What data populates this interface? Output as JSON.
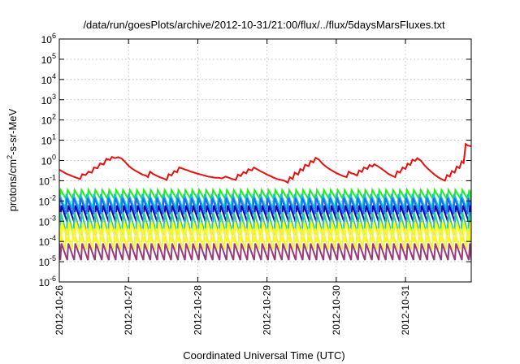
{
  "chart_data": {
    "type": "line",
    "title": "/data/run/goesPlots/archive/2012-10-31/21:00/flux/../flux/5daysMarsFluxes.txt",
    "xlabel": "Coordinated Universal Time (UTC)",
    "ylabel": {
      "prefix": "protons/cm",
      "sup": "2",
      "suffix": "-s-sr-MeV"
    },
    "yscale": "log",
    "ylim": [
      1e-06,
      1000000.0
    ],
    "xlim": [
      0,
      5.95
    ],
    "grid": true,
    "x_ticks": [
      {
        "value": 0,
        "label": "2012-10-26"
      },
      {
        "value": 1,
        "label": "2012-10-27"
      },
      {
        "value": 2,
        "label": "2012-10-28"
      },
      {
        "value": 3,
        "label": "2012-10-29"
      },
      {
        "value": 4,
        "label": "2012-10-30"
      },
      {
        "value": 5,
        "label": "2012-10-31"
      }
    ],
    "y_ticks": [
      {
        "exp": 6,
        "base": "10",
        "sup": "6"
      },
      {
        "exp": 5,
        "base": "10",
        "sup": "5"
      },
      {
        "exp": 4,
        "base": "10",
        "sup": "4"
      },
      {
        "exp": 3,
        "base": "10",
        "sup": "3"
      },
      {
        "exp": 2,
        "base": "10",
        "sup": "2"
      },
      {
        "exp": 1,
        "base": "10",
        "sup": "1"
      },
      {
        "exp": 0,
        "base": "10",
        "sup": "0"
      },
      {
        "exp": -1,
        "base": "10",
        "sup": "-1"
      },
      {
        "exp": -2,
        "base": "10",
        "sup": "-2"
      },
      {
        "exp": -3,
        "base": "10",
        "sup": "-3"
      },
      {
        "exp": -4,
        "base": "10",
        "sup": "-4"
      },
      {
        "exp": -5,
        "base": "10",
        "sup": "-5"
      },
      {
        "exp": -6,
        "base": "10",
        "sup": "-6"
      }
    ],
    "series": [
      {
        "color": "#e81010",
        "width": 2,
        "points": [
          [
            0,
            0.35
          ],
          [
            0.05,
            0.28
          ],
          [
            0.1,
            0.22
          ],
          [
            0.15,
            0.19
          ],
          [
            0.2,
            0.16
          ],
          [
            0.25,
            0.14
          ],
          [
            0.3,
            0.12
          ],
          [
            0.33,
            0.21
          ],
          [
            0.38,
            0.19
          ],
          [
            0.42,
            0.28
          ],
          [
            0.47,
            0.25
          ],
          [
            0.5,
            0.45
          ],
          [
            0.55,
            0.41
          ],
          [
            0.59,
            0.72
          ],
          [
            0.64,
            0.63
          ],
          [
            0.68,
            1.2
          ],
          [
            0.73,
            1.05
          ],
          [
            0.76,
            1.5
          ],
          [
            0.8,
            1.3
          ],
          [
            0.85,
            1.45
          ],
          [
            0.9,
            1.25
          ],
          [
            0.95,
            0.85
          ],
          [
            1.0,
            0.55
          ],
          [
            1.05,
            0.4
          ],
          [
            1.1,
            0.31
          ],
          [
            1.15,
            0.25
          ],
          [
            1.2,
            0.2
          ],
          [
            1.25,
            0.18
          ],
          [
            1.28,
            0.15
          ],
          [
            1.31,
            0.28
          ],
          [
            1.35,
            0.22
          ],
          [
            1.4,
            0.18
          ],
          [
            1.45,
            0.15
          ],
          [
            1.5,
            0.13
          ],
          [
            1.55,
            0.11
          ],
          [
            1.58,
            0.21
          ],
          [
            1.62,
            0.18
          ],
          [
            1.66,
            0.3
          ],
          [
            1.7,
            0.26
          ],
          [
            1.73,
            0.45
          ],
          [
            1.78,
            0.4
          ],
          [
            1.82,
            0.35
          ],
          [
            1.86,
            0.32
          ],
          [
            1.9,
            0.28
          ],
          [
            1.95,
            0.25
          ],
          [
            2.0,
            0.22
          ],
          [
            2.05,
            0.2
          ],
          [
            2.1,
            0.18
          ],
          [
            2.15,
            0.16
          ],
          [
            2.2,
            0.15
          ],
          [
            2.25,
            0.14
          ],
          [
            2.3,
            0.14
          ],
          [
            2.35,
            0.13
          ],
          [
            2.4,
            0.16
          ],
          [
            2.45,
            0.14
          ],
          [
            2.5,
            0.12
          ],
          [
            2.55,
            0.11
          ],
          [
            2.58,
            0.2
          ],
          [
            2.62,
            0.17
          ],
          [
            2.66,
            0.27
          ],
          [
            2.7,
            0.23
          ],
          [
            2.73,
            0.37
          ],
          [
            2.78,
            0.32
          ],
          [
            2.81,
            0.45
          ],
          [
            2.85,
            0.38
          ],
          [
            2.9,
            0.3
          ],
          [
            2.95,
            0.25
          ],
          [
            3.0,
            0.2
          ],
          [
            3.05,
            0.17
          ],
          [
            3.1,
            0.14
          ],
          [
            3.15,
            0.12
          ],
          [
            3.2,
            0.11
          ],
          [
            3.25,
            0.1
          ],
          [
            3.3,
            0.08
          ],
          [
            3.33,
            0.15
          ],
          [
            3.37,
            0.12
          ],
          [
            3.4,
            0.25
          ],
          [
            3.45,
            0.2
          ],
          [
            3.48,
            0.38
          ],
          [
            3.52,
            0.32
          ],
          [
            3.55,
            0.62
          ],
          [
            3.6,
            0.52
          ],
          [
            3.63,
            0.95
          ],
          [
            3.67,
            0.8
          ],
          [
            3.7,
            1.35
          ],
          [
            3.75,
            1.1
          ],
          [
            3.8,
            0.7
          ],
          [
            3.85,
            0.5
          ],
          [
            3.9,
            0.38
          ],
          [
            3.95,
            0.3
          ],
          [
            4.0,
            0.24
          ],
          [
            4.05,
            0.2
          ],
          [
            4.1,
            0.17
          ],
          [
            4.15,
            0.15
          ],
          [
            4.18,
            0.28
          ],
          [
            4.22,
            0.23
          ],
          [
            4.25,
            0.22
          ],
          [
            4.3,
            0.18
          ],
          [
            4.33,
            0.32
          ],
          [
            4.37,
            0.27
          ],
          [
            4.4,
            0.45
          ],
          [
            4.45,
            0.38
          ],
          [
            4.48,
            0.6
          ],
          [
            4.52,
            0.5
          ],
          [
            4.55,
            0.65
          ],
          [
            4.6,
            0.52
          ],
          [
            4.65,
            0.4
          ],
          [
            4.7,
            0.3
          ],
          [
            4.75,
            0.22
          ],
          [
            4.8,
            0.18
          ],
          [
            4.85,
            0.15
          ],
          [
            4.88,
            0.29
          ],
          [
            4.92,
            0.25
          ],
          [
            4.96,
            0.45
          ],
          [
            5.0,
            0.38
          ],
          [
            5.03,
            0.7
          ],
          [
            5.07,
            0.6
          ],
          [
            5.1,
            1.1
          ],
          [
            5.14,
            0.95
          ],
          [
            5.17,
            1.3
          ],
          [
            5.22,
            1.0
          ],
          [
            5.27,
            0.6
          ],
          [
            5.32,
            0.4
          ],
          [
            5.37,
            0.28
          ],
          [
            5.42,
            0.2
          ],
          [
            5.47,
            0.15
          ],
          [
            5.52,
            0.12
          ],
          [
            5.57,
            0.1
          ],
          [
            5.6,
            0.19
          ],
          [
            5.64,
            0.16
          ],
          [
            5.67,
            0.3
          ],
          [
            5.71,
            0.25
          ],
          [
            5.74,
            0.5
          ],
          [
            5.78,
            0.42
          ],
          [
            5.81,
            0.9
          ],
          [
            5.84,
            0.75
          ],
          [
            5.87,
            6.5
          ],
          [
            5.9,
            5.5
          ],
          [
            5.95,
            5.0
          ]
        ]
      },
      {
        "color": "#22ee22",
        "width": 2,
        "peak": 0.035,
        "trough": 0.011,
        "period": 0.1,
        "phase": 0.02
      },
      {
        "color": "#10c8c8",
        "width": 2,
        "peak": 0.022,
        "trough": 0.0042,
        "period": 0.1,
        "phase": 0.0
      },
      {
        "color": "#1e6cff",
        "width": 2,
        "peak": 0.014,
        "trough": 0.0022,
        "period": 0.1,
        "phase": 0.01
      },
      {
        "color": "#0a0ab0",
        "width": 2,
        "peak": 0.006,
        "trough": 0.0009,
        "period": 0.1,
        "phase": 0.03
      },
      {
        "color": "#28c8a0",
        "width": 2,
        "peak": 0.0028,
        "trough": 0.00022,
        "period": 0.1,
        "phase": 0.02
      },
      {
        "color": "#ffff00",
        "width": 2,
        "peak": 0.0009,
        "trough": 9e-05,
        "period": 0.1,
        "phase": 0.04
      },
      {
        "color": "#f0f050",
        "width": 2,
        "peak": 0.00045,
        "trough": 4e-05,
        "period": 0.1,
        "phase": 0.0
      },
      {
        "color": "#9b3a78",
        "width": 2,
        "peak": 8e-05,
        "trough": 1.2e-05,
        "period": 0.1,
        "phase": 0.03
      }
    ]
  }
}
